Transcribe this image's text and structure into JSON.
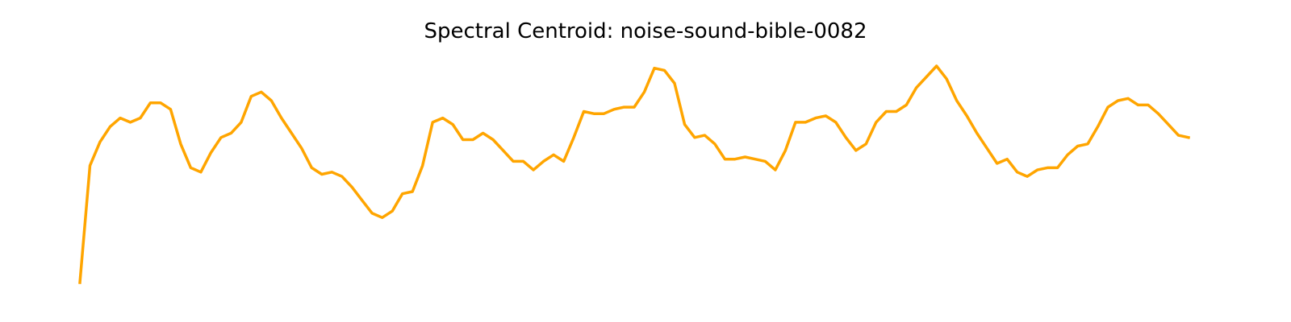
{
  "chart_data": {
    "type": "line",
    "title": "Spectral Centroid: noise-sound-bible-0082",
    "xlabel": "",
    "ylabel": "",
    "axis_visible": false,
    "grid": false,
    "color": "#ffa500",
    "series": [
      {
        "values": [
          0.0,
          0.54,
          0.65,
          0.72,
          0.76,
          0.74,
          0.76,
          0.83,
          0.83,
          0.8,
          0.64,
          0.53,
          0.51,
          0.6,
          0.67,
          0.69,
          0.74,
          0.86,
          0.88,
          0.84,
          0.76,
          0.69,
          0.62,
          0.53,
          0.5,
          0.51,
          0.49,
          0.44,
          0.38,
          0.32,
          0.3,
          0.33,
          0.41,
          0.42,
          0.54,
          0.74,
          0.76,
          0.73,
          0.66,
          0.66,
          0.69,
          0.66,
          0.61,
          0.56,
          0.56,
          0.52,
          0.56,
          0.59,
          0.56,
          0.67,
          0.79,
          0.78,
          0.78,
          0.8,
          0.81,
          0.81,
          0.88,
          0.99,
          0.98,
          0.92,
          0.73,
          0.67,
          0.68,
          0.64,
          0.57,
          0.57,
          0.58,
          0.57,
          0.56,
          0.52,
          0.61,
          0.74,
          0.74,
          0.76,
          0.77,
          0.74,
          0.67,
          0.61,
          0.64,
          0.74,
          0.79,
          0.79,
          0.82,
          0.9,
          0.95,
          1.0,
          0.94,
          0.84,
          0.77,
          0.69,
          0.62,
          0.55,
          0.57,
          0.51,
          0.49,
          0.52,
          0.53,
          0.53,
          0.59,
          0.63,
          0.64,
          0.72,
          0.81,
          0.84,
          0.85,
          0.82,
          0.82,
          0.78,
          0.73,
          0.68,
          0.67
        ]
      }
    ]
  }
}
